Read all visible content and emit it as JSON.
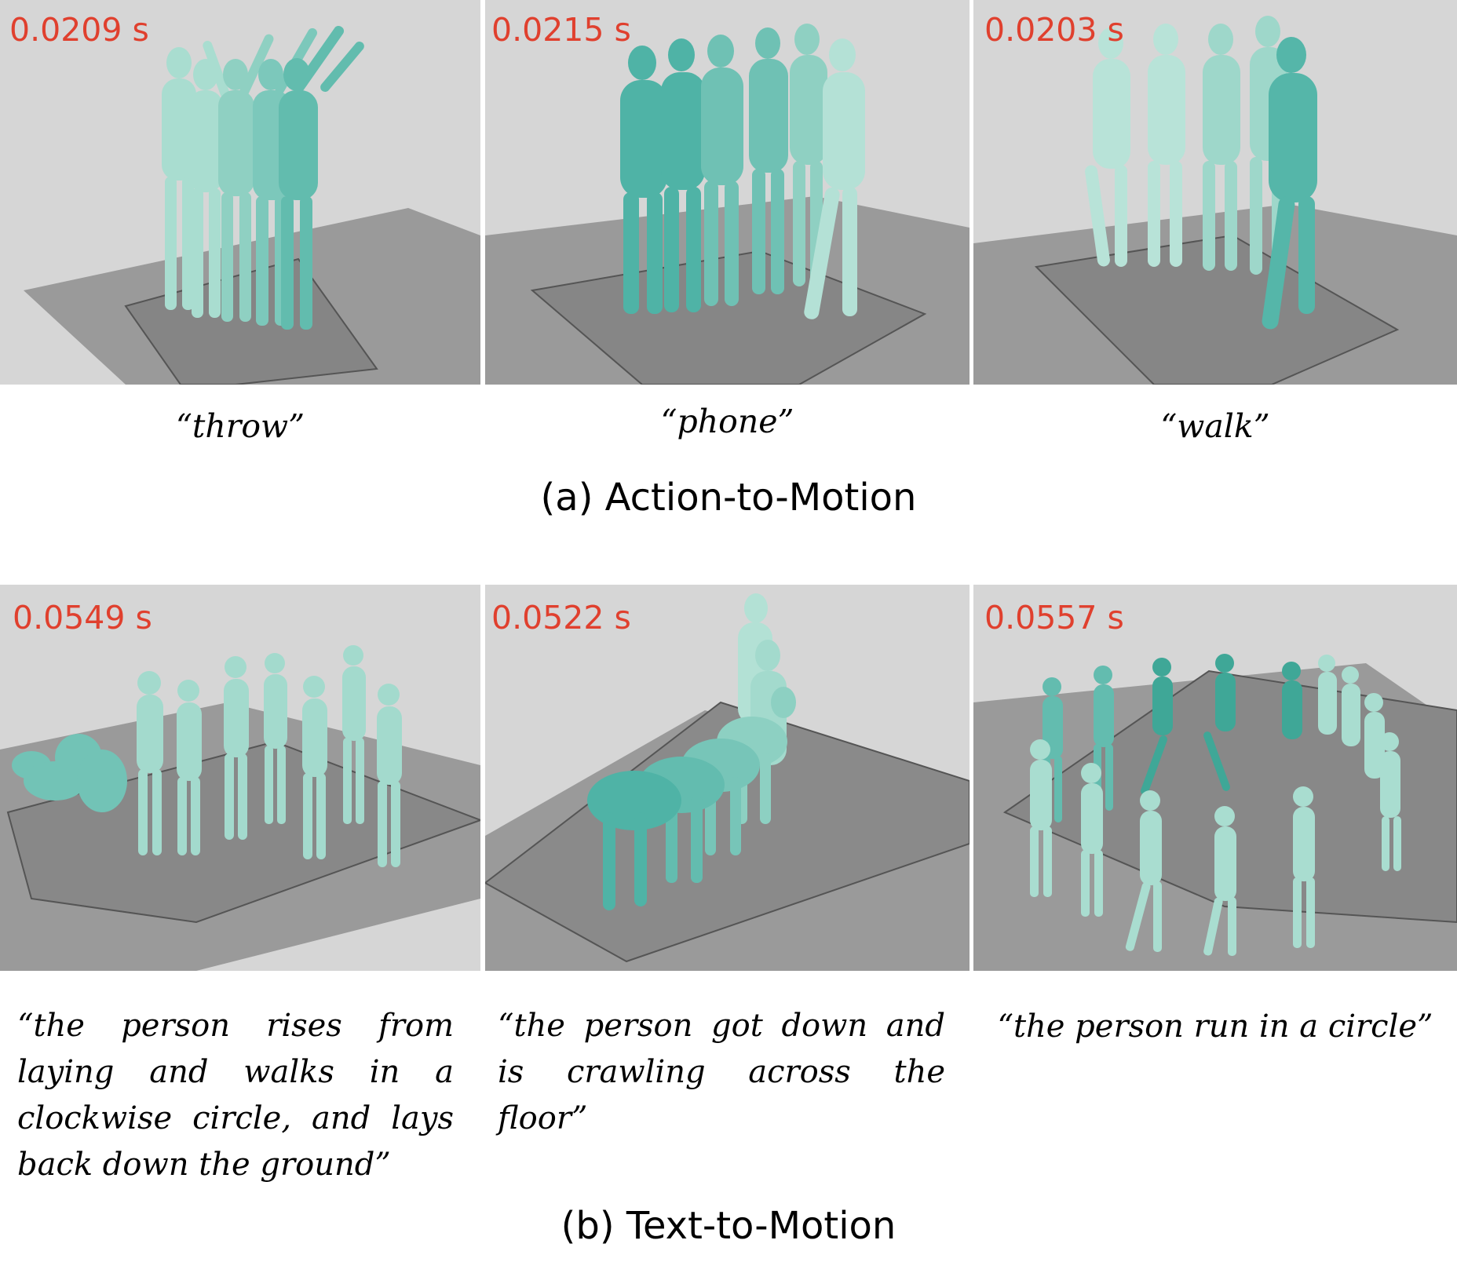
{
  "colors": {
    "timing_red": "#e0402e",
    "body_light": "#a9ddd0",
    "body_dark": "#4fb3a6",
    "floor": "#8c8c8c",
    "background": "#d6d6d6"
  },
  "sections": [
    {
      "title": "(a) Action-to-Motion",
      "panels": [
        {
          "timing": "0.0209 s",
          "caption": "“throw”"
        },
        {
          "timing": "0.0215 s",
          "caption": "“phone”"
        },
        {
          "timing": "0.0203 s",
          "caption": "“walk”"
        }
      ]
    },
    {
      "title": "(b) Text-to-Motion",
      "panels": [
        {
          "timing": "0.0549 s",
          "caption": "“the person rises from laying and walks in a clockwise circle, and lays back down the ground”"
        },
        {
          "timing": "0.0522 s",
          "caption": "“the person got down and is crawling across the floor”"
        },
        {
          "timing": "0.0557 s",
          "caption": "“the person run in a circle”"
        }
      ]
    }
  ]
}
